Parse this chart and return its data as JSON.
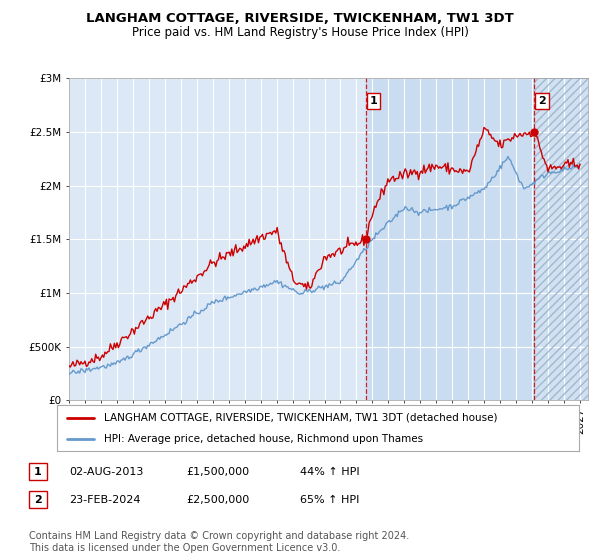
{
  "title": "LANGHAM COTTAGE, RIVERSIDE, TWICKENHAM, TW1 3DT",
  "subtitle": "Price paid vs. HM Land Registry's House Price Index (HPI)",
  "ylabel_ticks": [
    "£0",
    "£500K",
    "£1M",
    "£1.5M",
    "£2M",
    "£2.5M",
    "£3M"
  ],
  "ylabel_values": [
    0,
    500000,
    1000000,
    1500000,
    2000000,
    2500000,
    3000000
  ],
  "ylim": [
    0,
    3000000
  ],
  "xlim_start": 1995.0,
  "xlim_end": 2027.5,
  "transaction1_x": 2013.58,
  "transaction1_y": 1500000,
  "transaction1_label": "1",
  "transaction2_x": 2024.12,
  "transaction2_y": 2500000,
  "transaction2_label": "2",
  "hpi_line_color": "#6699cc",
  "price_line_color": "#cc0000",
  "dashed_line_color": "#cc0000",
  "bg_color": "#ffffff",
  "plot_bg_color": "#dce8f5",
  "shade1_color": "#d0e0f0",
  "grid_color": "#ffffff",
  "legend_entry1": "LANGHAM COTTAGE, RIVERSIDE, TWICKENHAM, TW1 3DT (detached house)",
  "legend_entry2": "HPI: Average price, detached house, Richmond upon Thames",
  "table_row1": [
    "1",
    "02-AUG-2013",
    "£1,500,000",
    "44% ↑ HPI"
  ],
  "table_row2": [
    "2",
    "23-FEB-2024",
    "£2,500,000",
    "65% ↑ HPI"
  ],
  "footnote1": "Contains HM Land Registry data © Crown copyright and database right 2024.",
  "footnote2": "This data is licensed under the Open Government Licence v3.0.",
  "title_fontsize": 9.5,
  "subtitle_fontsize": 8.5,
  "tick_fontsize": 7.5,
  "legend_fontsize": 7.5,
  "table_fontsize": 8.0,
  "footnote_fontsize": 7.0
}
